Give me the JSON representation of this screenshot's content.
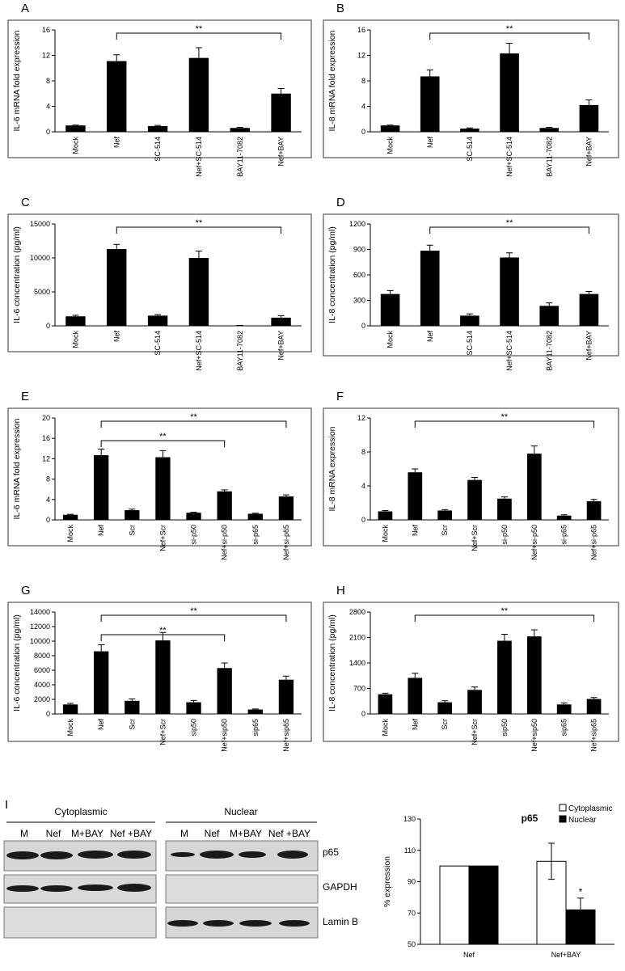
{
  "chart_data": [
    {
      "type": "bar",
      "panel": "A",
      "y_label": "IL-6 mRNA fold expression",
      "color": "#000000",
      "categories": [
        "Mock",
        "Nef",
        "SC-514",
        "Nef+SC-514",
        "BAY11-7082",
        "Nef+BAY"
      ],
      "values": [
        1,
        11.1,
        0.9,
        11.6,
        0.6,
        6.0
      ],
      "errors": [
        0.05,
        1.0,
        0.1,
        1.6,
        0.1,
        0.8
      ],
      "ylim": [
        0,
        16
      ],
      "yticks": [
        0,
        4,
        8,
        12,
        16
      ],
      "annotations": [
        {
          "text": "**",
          "from": "Nef",
          "to": "Nef+BAY"
        }
      ]
    },
    {
      "type": "bar",
      "panel": "B",
      "y_label": "IL-8 mRNA fold expression",
      "color": "#000000",
      "categories": [
        "Mock",
        "Nef",
        "SC-514",
        "Nef+SC-514",
        "BAY11-7082",
        "Nef+BAY"
      ],
      "values": [
        1,
        8.7,
        0.5,
        12.3,
        0.6,
        4.2
      ],
      "errors": [
        0.05,
        1.0,
        0.1,
        1.6,
        0.1,
        0.8
      ],
      "ylim": [
        0,
        16
      ],
      "yticks": [
        0,
        4,
        8,
        12,
        16
      ],
      "annotations": [
        {
          "text": "**",
          "from": "Nef",
          "to": "Nef+BAY"
        }
      ]
    },
    {
      "type": "bar",
      "panel": "C",
      "y_label": "IL-6 concentration (pg/ml)",
      "color": "#000000",
      "categories": [
        "Mock",
        "Nef",
        "SC-514",
        "Nef+SC-514",
        "BAY11-7082",
        "Nef+BAY"
      ],
      "values": [
        1400,
        11300,
        1500,
        10000,
        50,
        1200
      ],
      "errors": [
        150,
        700,
        150,
        1000,
        20,
        300
      ],
      "ylim": [
        0,
        15000
      ],
      "yticks": [
        0,
        5000,
        10000,
        15000
      ],
      "annotations": [
        {
          "text": "**",
          "from": "Nef",
          "to": "Nef+BAY"
        }
      ]
    },
    {
      "type": "bar",
      "panel": "D",
      "y_label": "IL-8 concentration (pg/ml)",
      "color": "#000000",
      "categories": [
        "Mock",
        "Nef",
        "SC-514",
        "Nef+SC-514",
        "BAY11-7082",
        "Nef+BAY"
      ],
      "values": [
        375,
        885,
        120,
        805,
        235,
        375
      ],
      "errors": [
        40,
        65,
        20,
        55,
        35,
        30
      ],
      "ylim": [
        0,
        1200
      ],
      "yticks": [
        0,
        300,
        600,
        900,
        1200
      ],
      "annotations": [
        {
          "text": "**",
          "from": "Nef",
          "to": "Nef+BAY"
        }
      ]
    },
    {
      "type": "bar",
      "panel": "E",
      "y_label": "IL-6 mRNA fold expression",
      "color": "#000000",
      "categories": [
        "Mock",
        "Nef",
        "Scr",
        "Nef+Scr",
        "si-p50",
        "Nef+si-p50",
        "si-p65",
        "Nef+si-p65"
      ],
      "values": [
        1,
        12.7,
        1.9,
        12.3,
        1.4,
        5.6,
        1.2,
        4.6
      ],
      "errors": [
        0.1,
        1.2,
        0.2,
        1.3,
        0.1,
        0.3,
        0.1,
        0.3
      ],
      "ylim": [
        0,
        20
      ],
      "yticks": [
        0,
        4,
        8,
        12,
        16,
        20
      ],
      "annotations": [
        {
          "text": "**",
          "from": "Nef",
          "to": "Nef+si-p50"
        },
        {
          "text": "**",
          "from": "Nef",
          "to": "Nef+si-p65"
        }
      ]
    },
    {
      "type": "bar",
      "panel": "F",
      "y_label": "IL-8 mRNA expression",
      "color": "#000000",
      "categories": [
        "Mock",
        "Nef",
        "Scr",
        "Nef+Scr",
        "si-p50",
        "Nef+si-p50",
        "si-p65",
        "Nef+si-p65"
      ],
      "values": [
        1,
        5.6,
        1.1,
        4.7,
        2.5,
        7.8,
        0.5,
        2.2
      ],
      "errors": [
        0.1,
        0.4,
        0.1,
        0.3,
        0.2,
        0.9,
        0.1,
        0.2
      ],
      "ylim": [
        0,
        12
      ],
      "yticks": [
        0,
        4,
        8,
        12
      ],
      "annotations": [
        {
          "text": "**",
          "from": "Nef",
          "to": "Nef+si-p65"
        }
      ]
    },
    {
      "type": "bar",
      "panel": "G",
      "y_label": "IL-6 concentration (pg/ml)",
      "color": "#000000",
      "categories": [
        "Mock",
        "Nef",
        "Scr",
        "Nef+Scr",
        "sip50",
        "Nef+sip50",
        "sip65",
        "Nef+sip65"
      ],
      "values": [
        1300,
        8600,
        1800,
        10100,
        1600,
        6300,
        600,
        4700
      ],
      "errors": [
        150,
        900,
        250,
        1100,
        250,
        700,
        80,
        500
      ],
      "ylim": [
        0,
        14000
      ],
      "yticks": [
        0,
        2000,
        4000,
        6000,
        8000,
        10000,
        12000,
        14000
      ],
      "annotations": [
        {
          "text": "**",
          "from": "Nef",
          "to": "Nef+sip50"
        },
        {
          "text": "**",
          "from": "Nef",
          "to": "Nef+sip65"
        }
      ]
    },
    {
      "type": "bar",
      "panel": "H",
      "y_label": "IL-8 concentration (pg/ml)",
      "color": "#000000",
      "categories": [
        "Mock",
        "Nef",
        "Scr",
        "Nef+Scr",
        "sip50",
        "Nef+sip50",
        "sip65",
        "Nef+sip65"
      ],
      "values": [
        540,
        990,
        320,
        660,
        2010,
        2130,
        260,
        410
      ],
      "errors": [
        30,
        130,
        40,
        80,
        180,
        180,
        40,
        40
      ],
      "ylim": [
        0,
        2800
      ],
      "yticks": [
        0,
        700,
        1400,
        2100,
        2800
      ],
      "annotations": [
        {
          "text": "**",
          "from": "Nef",
          "to": "Nef+sip65"
        }
      ]
    },
    {
      "type": "grouped_bar",
      "panel": "I",
      "title": "p65",
      "y_label": "% expression",
      "categories": [
        "Nef",
        "Nef+BAY"
      ],
      "series": [
        {
          "name": "Cytoplasmic",
          "color": "#ffffff",
          "values": [
            100,
            103
          ],
          "errors": [
            0,
            11.5
          ]
        },
        {
          "name": "Nuclear",
          "color": "#000000",
          "values": [
            100,
            72
          ],
          "errors": [
            0,
            7.5
          ]
        }
      ],
      "ylim": [
        50,
        130
      ],
      "yticks": [
        50,
        70,
        90,
        110,
        130
      ],
      "legend": "top-right",
      "annotations": [
        {
          "text": "*",
          "series": "Nuclear",
          "category": "Nef+BAY"
        }
      ]
    }
  ],
  "blot": {
    "groups": [
      {
        "title": "Cytoplasmic",
        "lanes": [
          "M",
          "Nef",
          "M+BAY",
          "Nef +BAY"
        ]
      },
      {
        "title": "Nuclear",
        "lanes": [
          "M",
          "Nef",
          "M+BAY",
          "Nef +BAY"
        ]
      }
    ],
    "rows": [
      "p65",
      "GAPDH",
      "Lamin B"
    ]
  }
}
